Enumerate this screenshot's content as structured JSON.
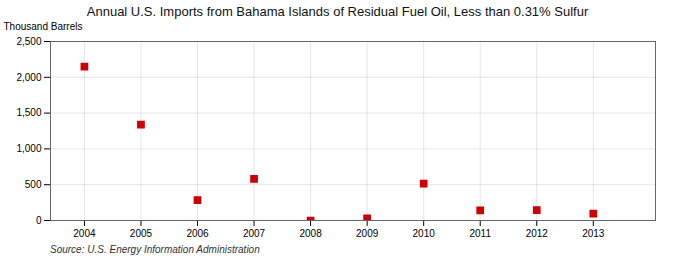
{
  "chart_data": {
    "type": "scatter",
    "title": "Annual U.S. Imports from Bahama Islands of Residual Fuel Oil, Less than 0.31% Sulfur",
    "ylabel": "Thousand Barrels",
    "source": "Source: U.S. Energy Information Administration",
    "x": [
      2004,
      2005,
      2006,
      2007,
      2008,
      2009,
      2010,
      2011,
      2012,
      2013
    ],
    "values": [
      2150,
      1340,
      285,
      580,
      0,
      30,
      515,
      140,
      145,
      95
    ],
    "color": "#cc0000",
    "marker": "square",
    "xlim": [
      2003.4,
      2014.1
    ],
    "xticks": [
      2004,
      2005,
      2006,
      2007,
      2008,
      2009,
      2010,
      2011,
      2012,
      2013
    ],
    "ylim": [
      0,
      2500
    ],
    "yticks": [
      0,
      500,
      {
        "value": 1000,
        "label": "1,000"
      },
      {
        "value": 1500,
        "label": "1,500"
      },
      {
        "value": 2000,
        "label": "2,000"
      },
      {
        "value": 2500,
        "label": "2,500"
      }
    ],
    "grid": true
  }
}
